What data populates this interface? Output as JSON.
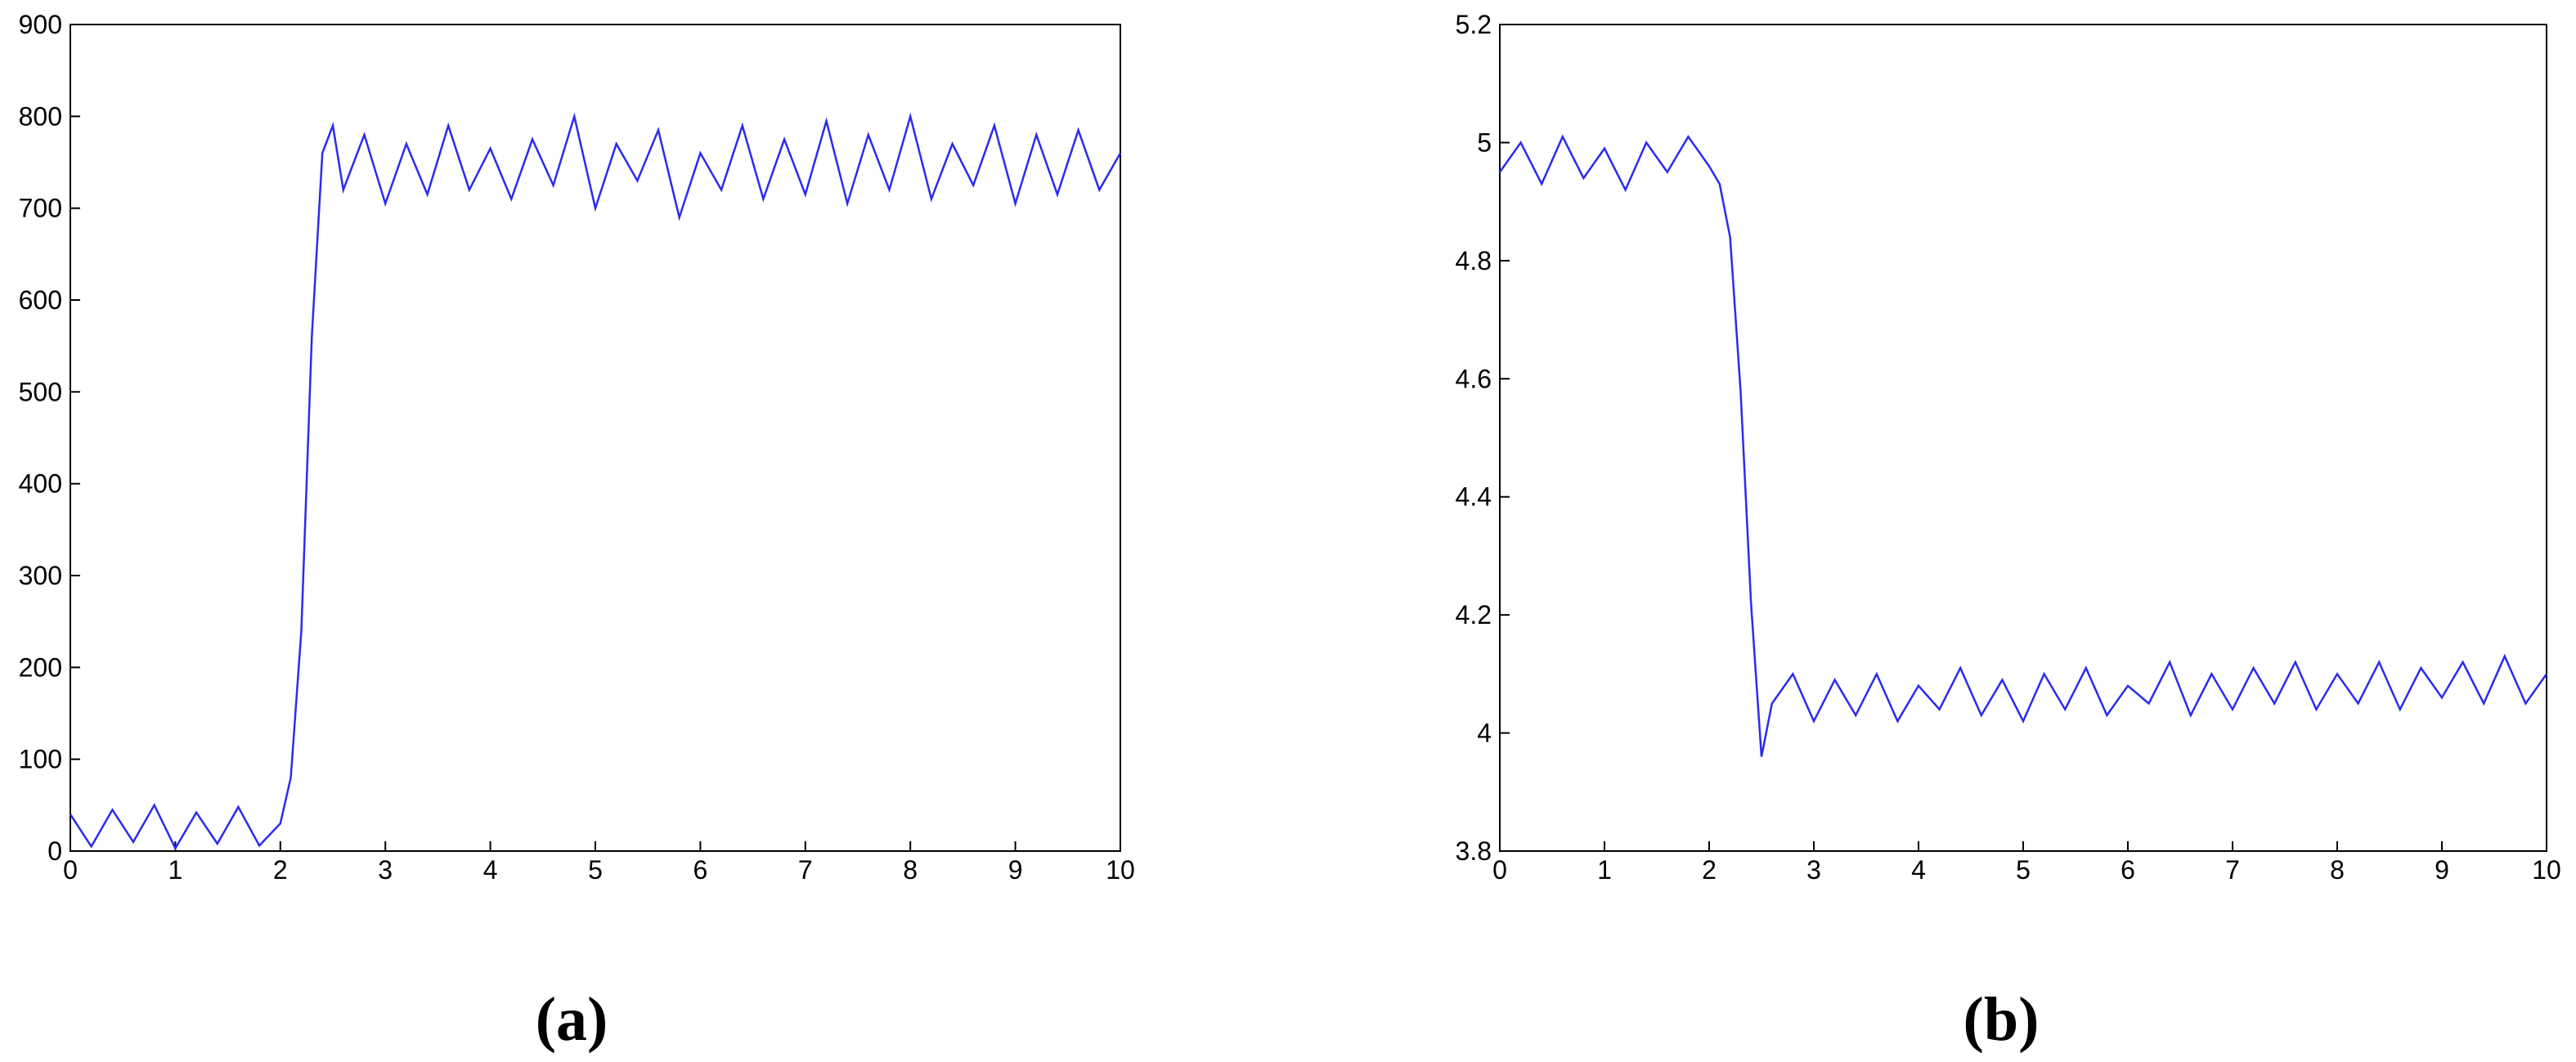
{
  "chart_data": [
    {
      "type": "line",
      "label": "(a)",
      "x": [
        0,
        0.2,
        0.4,
        0.6,
        0.8,
        1,
        1.2,
        1.4,
        1.6,
        1.8,
        2,
        2.1,
        2.2,
        2.3,
        2.4,
        2.5,
        2.6,
        2.8,
        3,
        3.2,
        3.4,
        3.6,
        3.8,
        4,
        4.2,
        4.4,
        4.6,
        4.8,
        5,
        5.2,
        5.4,
        5.6,
        5.8,
        6,
        6.2,
        6.4,
        6.6,
        6.8,
        7,
        7.2,
        7.4,
        7.6,
        7.8,
        8,
        8.2,
        8.4,
        8.6,
        8.8,
        9,
        9.2,
        9.4,
        9.6,
        9.8,
        10
      ],
      "values": [
        40,
        5,
        45,
        10,
        50,
        3,
        42,
        8,
        48,
        6,
        30,
        80,
        240,
        560,
        760,
        790,
        720,
        780,
        705,
        770,
        715,
        790,
        720,
        765,
        710,
        775,
        725,
        800,
        700,
        770,
        730,
        785,
        690,
        760,
        720,
        790,
        710,
        775,
        715,
        795,
        705,
        780,
        720,
        800,
        710,
        770,
        725,
        790,
        705,
        780,
        715,
        785,
        720,
        760
      ],
      "color": "#2b2bf0",
      "xlim": [
        0,
        10
      ],
      "xticks": [
        0,
        1,
        2,
        3,
        4,
        5,
        6,
        7,
        8,
        9,
        10
      ],
      "ylim": [
        0,
        900
      ],
      "yticks": [
        0,
        100,
        200,
        300,
        400,
        500,
        600,
        700,
        800,
        900
      ]
    },
    {
      "type": "line",
      "label": "(b)",
      "x": [
        0,
        0.2,
        0.4,
        0.6,
        0.8,
        1,
        1.2,
        1.4,
        1.6,
        1.8,
        2,
        2.1,
        2.2,
        2.3,
        2.4,
        2.5,
        2.6,
        2.8,
        3,
        3.2,
        3.4,
        3.6,
        3.8,
        4,
        4.2,
        4.4,
        4.6,
        4.8,
        5,
        5.2,
        5.4,
        5.6,
        5.8,
        6,
        6.2,
        6.4,
        6.6,
        6.8,
        7,
        7.2,
        7.4,
        7.6,
        7.8,
        8,
        8.2,
        8.4,
        8.6,
        8.8,
        9,
        9.2,
        9.4,
        9.6,
        9.8,
        10
      ],
      "values": [
        4.95,
        5.0,
        4.93,
        5.01,
        4.94,
        4.99,
        4.92,
        5.0,
        4.95,
        5.01,
        4.96,
        4.93,
        4.84,
        4.58,
        4.22,
        3.96,
        4.05,
        4.1,
        4.02,
        4.09,
        4.03,
        4.1,
        4.02,
        4.08,
        4.04,
        4.11,
        4.03,
        4.09,
        4.02,
        4.1,
        4.04,
        4.11,
        4.03,
        4.08,
        4.05,
        4.12,
        4.03,
        4.1,
        4.04,
        4.11,
        4.05,
        4.12,
        4.04,
        4.1,
        4.05,
        4.12,
        4.04,
        4.11,
        4.06,
        4.12,
        4.05,
        4.13,
        4.05,
        4.1
      ],
      "color": "#2b2bf0",
      "xlim": [
        0,
        10
      ],
      "xticks": [
        0,
        1,
        2,
        3,
        4,
        5,
        6,
        7,
        8,
        9,
        10
      ],
      "ylim": [
        3.8,
        5.2
      ],
      "yticks": [
        3.8,
        4,
        4.2,
        4.4,
        4.6,
        4.8,
        5,
        5.2
      ]
    }
  ]
}
